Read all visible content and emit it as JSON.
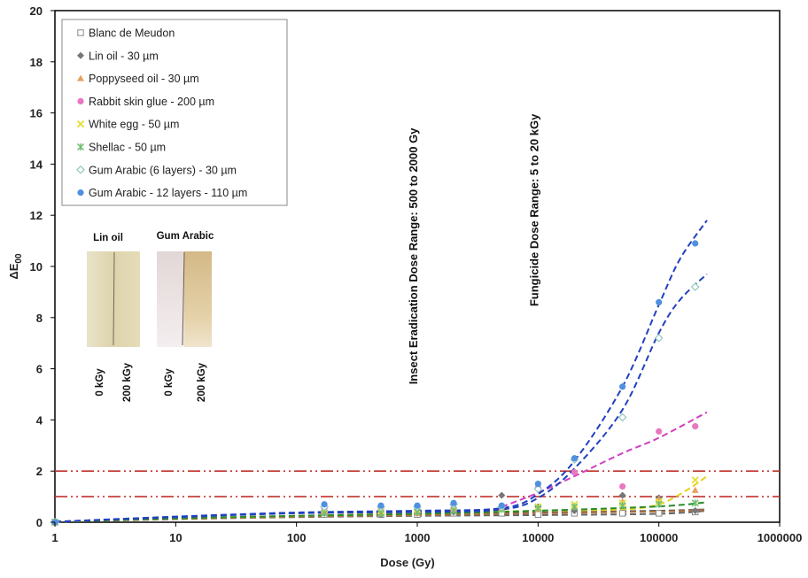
{
  "chart_data": {
    "type": "scatter",
    "xscale": "log",
    "xlabel": "Dose (Gy)",
    "ylabel": "ΔE",
    "ylabel_sub": "00",
    "xlim": [
      1,
      1000000
    ],
    "ylim": [
      0,
      20
    ],
    "xticks": [
      "1",
      "10",
      "100",
      "1000",
      "10000",
      "100000",
      "1000000"
    ],
    "yticks": [
      "0",
      "2",
      "4",
      "6",
      "8",
      "10",
      "12",
      "14",
      "16",
      "18",
      "20"
    ],
    "grid": false,
    "legend_position": "top-left",
    "reference_lines": [
      {
        "y": 1,
        "color": "#c0302a"
      },
      {
        "y": 2,
        "color": "#c0302a"
      }
    ],
    "annotations": [
      {
        "text": "Insect Eradication Dose Range: 500 to 2000 Gy",
        "x": 1000,
        "y": 10.4
      },
      {
        "text": "Fungicide Dose Range: 5 to 20 kGy",
        "x": 10000,
        "y": 12.2
      }
    ],
    "inset": {
      "samples": [
        {
          "title": "Lin oil",
          "doses": [
            "0 kGy",
            "200 kGy"
          ]
        },
        {
          "title": "Gum Arabic",
          "doses": [
            "0 kGy",
            "200 kGy"
          ]
        }
      ]
    },
    "series": [
      {
        "name": "Blanc de Meudon",
        "marker": "square-open",
        "color": "#888888",
        "x": [
          1,
          170,
          500,
          1000,
          2000,
          5000,
          10000,
          20000,
          50000,
          100000,
          200000
        ],
        "y": [
          0,
          0.3,
          0.3,
          0.3,
          0.35,
          0.35,
          0.3,
          0.35,
          0.35,
          0.35,
          0.4
        ],
        "fit_color": "#666666",
        "fit_x": [
          1,
          10,
          100,
          1000,
          10000,
          100000,
          250000
        ],
        "fit_y": [
          0.02,
          0.12,
          0.2,
          0.25,
          0.28,
          0.33,
          0.45
        ]
      },
      {
        "name": "Lin oil - 30 µm",
        "marker": "diamond",
        "color": "#777777",
        "x": [
          1,
          170,
          500,
          1000,
          2000,
          5000,
          10000,
          20000,
          50000,
          100000,
          200000
        ],
        "y": [
          0,
          0.35,
          0.3,
          0.35,
          0.4,
          1.05,
          0.6,
          0.45,
          1.05,
          0.95,
          0.45
        ],
        "fit_color": "#555555",
        "fit_x": [
          1,
          10,
          100,
          1000,
          10000,
          100000,
          250000
        ],
        "fit_y": [
          0.02,
          0.14,
          0.22,
          0.3,
          0.38,
          0.45,
          0.5
        ]
      },
      {
        "name": "Poppyseed oil - 30 µm",
        "marker": "triangle",
        "color": "#e8a060",
        "x": [
          1,
          170,
          500,
          1000,
          2000,
          5000,
          10000,
          20000,
          50000,
          100000,
          200000
        ],
        "y": [
          0,
          0.4,
          0.35,
          0.35,
          0.5,
          0.55,
          0.5,
          0.6,
          0.8,
          0.9,
          1.25
        ],
        "fit_color": "#b07040",
        "fit_x": [
          1,
          10,
          100,
          1000,
          10000,
          100000,
          250000
        ],
        "fit_y": [
          0.02,
          0.13,
          0.21,
          0.28,
          0.35,
          0.42,
          0.48
        ]
      },
      {
        "name": "Rabbit skin glue - 200 µm",
        "marker": "circle",
        "color": "#e878c0",
        "x": [
          1,
          170,
          500,
          1000,
          2000,
          5000,
          10000,
          20000,
          50000,
          100000,
          200000
        ],
        "y": [
          0,
          0.55,
          0.5,
          0.5,
          0.55,
          0.6,
          1.35,
          1.95,
          1.4,
          3.55,
          3.75
        ],
        "fit_color": "#d040c0",
        "fit_x": [
          5000,
          10000,
          20000,
          50000,
          100000,
          250000
        ],
        "fit_y": [
          0.6,
          1.15,
          1.8,
          2.7,
          3.3,
          4.3
        ]
      },
      {
        "name": "White egg - 50 µm",
        "marker": "x",
        "color": "#e8e040",
        "x": [
          1,
          170,
          500,
          1000,
          2000,
          5000,
          10000,
          20000,
          50000,
          100000,
          200000
        ],
        "y": [
          0,
          0.5,
          0.45,
          0.5,
          0.6,
          0.5,
          0.6,
          0.7,
          0.75,
          0.8,
          1.65
        ],
        "fit_color": "#e8d020",
        "fit_x": [
          1,
          10,
          100,
          1000,
          10000,
          50000,
          100000,
          170000,
          250000
        ],
        "fit_y": [
          0.02,
          0.15,
          0.25,
          0.35,
          0.45,
          0.5,
          0.7,
          1.25,
          1.8
        ]
      },
      {
        "name": "Shellac - 50 µm",
        "marker": "asterisk",
        "color": "#70c070",
        "x": [
          1,
          170,
          500,
          1000,
          2000,
          5000,
          10000,
          20000,
          50000,
          100000,
          200000
        ],
        "y": [
          0,
          0.35,
          0.35,
          0.4,
          0.45,
          0.5,
          0.55,
          0.6,
          0.65,
          0.7,
          0.75
        ],
        "fit_color": "#2a8a2a",
        "fit_x": [
          1,
          10,
          100,
          1000,
          10000,
          100000,
          250000
        ],
        "fit_y": [
          0.02,
          0.15,
          0.25,
          0.33,
          0.45,
          0.62,
          0.78
        ]
      },
      {
        "name": "Gum Arabic (6 layers) - 30 µm",
        "marker": "diamond-open",
        "color": "#90c8c0",
        "x": [
          1,
          170,
          500,
          1000,
          2000,
          5000,
          10000,
          20000,
          50000,
          100000,
          200000
        ],
        "y": [
          0,
          0.6,
          0.6,
          0.6,
          0.7,
          0.6,
          1.3,
          2.45,
          4.1,
          7.2,
          9.2
        ],
        "fit_color": "#2040c0",
        "fit_x": [
          1,
          10,
          100,
          1000,
          5000,
          10000,
          20000,
          50000,
          100000,
          150000,
          250000
        ],
        "fit_y": [
          0.02,
          0.2,
          0.35,
          0.4,
          0.5,
          0.95,
          2.1,
          4.4,
          7.4,
          8.7,
          9.7
        ]
      },
      {
        "name": "Gum Arabic - 12 layers - 110 µm",
        "marker": "circle",
        "color": "#5090e0",
        "x": [
          1,
          170,
          500,
          1000,
          2000,
          5000,
          10000,
          20000,
          50000,
          100000,
          200000
        ],
        "y": [
          0,
          0.7,
          0.65,
          0.65,
          0.75,
          0.65,
          1.5,
          2.5,
          5.3,
          8.6,
          10.9
        ],
        "fit_color": "#2040c0",
        "fit_x": [
          1,
          10,
          100,
          1000,
          5000,
          10000,
          20000,
          50000,
          100000,
          150000,
          250000
        ],
        "fit_y": [
          0.02,
          0.22,
          0.38,
          0.45,
          0.55,
          1.1,
          2.4,
          5.3,
          8.5,
          10.3,
          11.8
        ]
      }
    ]
  }
}
